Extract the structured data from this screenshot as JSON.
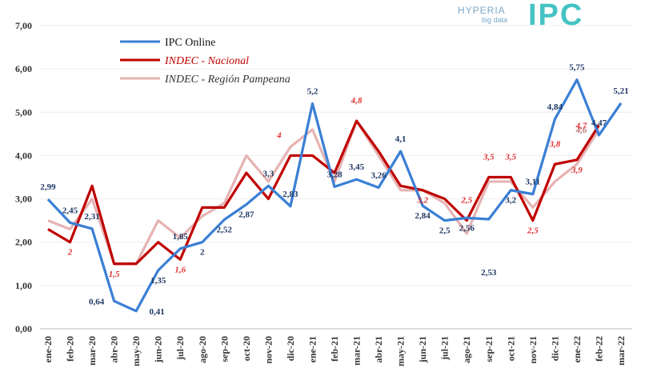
{
  "logo": {
    "brand": "HYPERIA",
    "sub": "big data",
    "product": "IPC"
  },
  "chart_data": {
    "type": "line",
    "title": "",
    "xlabel": "",
    "ylabel": "",
    "ylim": [
      0,
      7
    ],
    "yticks": [
      "0,00",
      "1,00",
      "2,00",
      "3,00",
      "4,00",
      "5,00",
      "6,00",
      "7,00"
    ],
    "grid": true,
    "legend": "top-left",
    "categories": [
      "ene-20",
      "feb-20",
      "mar-20",
      "abr-20",
      "may-20",
      "jun-20",
      "jul-20",
      "ago-20",
      "sep-20",
      "oct-20",
      "nov-20",
      "dic-20",
      "ene-21",
      "feb-21",
      "mar-21",
      "abr-21",
      "may-21",
      "jun-21",
      "jul-21",
      "ago-21",
      "sep-21",
      "oct-21",
      "nov-21",
      "dic-21",
      "ene-22",
      "feb-22",
      "mar-22"
    ],
    "series": [
      {
        "name": "INDEC - Región Pampeana",
        "color": "#e6b3b3",
        "italic": true,
        "values": [
          2.5,
          2.3,
          3.0,
          1.5,
          1.5,
          2.5,
          2.1,
          2.6,
          2.9,
          4.0,
          3.4,
          4.2,
          4.6,
          3.4,
          4.8,
          4.0,
          3.2,
          3.2,
          2.9,
          2.2,
          3.4,
          3.4,
          2.8,
          3.4,
          3.8,
          4.6,
          null
        ],
        "labels": {
          "25": "4,6"
        }
      },
      {
        "name": "INDEC - Nacional",
        "color": "#c00000",
        "italic": true,
        "values": [
          2.3,
          2.0,
          3.3,
          1.5,
          1.5,
          2.0,
          1.6,
          2.8,
          2.8,
          3.6,
          3.0,
          4.0,
          4.0,
          3.6,
          4.8,
          4.1,
          3.3,
          3.2,
          3.0,
          2.5,
          3.5,
          3.5,
          2.5,
          3.8,
          3.9,
          4.7,
          null
        ],
        "labels": {
          "1": "2",
          "3": "1,5",
          "6": "1,6",
          "11": "4",
          "14": "4,8",
          "17": "3,2",
          "19": "2,5",
          "20": "3,5",
          "21": "3,5",
          "22": "2,5",
          "23": "3,8",
          "24": "3,9",
          "25": "4,7"
        }
      },
      {
        "name": "IPC Online",
        "color": "#3a7fd5",
        "italic": false,
        "values": [
          2.99,
          2.45,
          2.31,
          0.64,
          0.41,
          1.35,
          1.85,
          2.0,
          2.52,
          2.87,
          3.3,
          2.83,
          5.2,
          3.28,
          3.45,
          3.26,
          4.1,
          2.84,
          2.5,
          2.56,
          2.53,
          3.2,
          3.11,
          4.84,
          5.75,
          4.47,
          5.21
        ],
        "labels": {
          "0": "2,99",
          "1": "2,45",
          "2": "2,31",
          "3": "0,64",
          "4": "0,41",
          "5": "1,35",
          "6": "1,85",
          "7": "2",
          "8": "2,52",
          "9": "2,87",
          "10": "3,3",
          "11": "2,83",
          "12": "5,2",
          "13": "3,28",
          "14": "3,45",
          "15": "3,26",
          "16": "4,1",
          "17": "2,84",
          "18": "2,5",
          "19": "2,56",
          "20": "2,53",
          "21": "3,2",
          "22": "3,11",
          "23": "4,84",
          "24": "5,75",
          "25": "4,47",
          "26": "5,21"
        }
      }
    ]
  }
}
